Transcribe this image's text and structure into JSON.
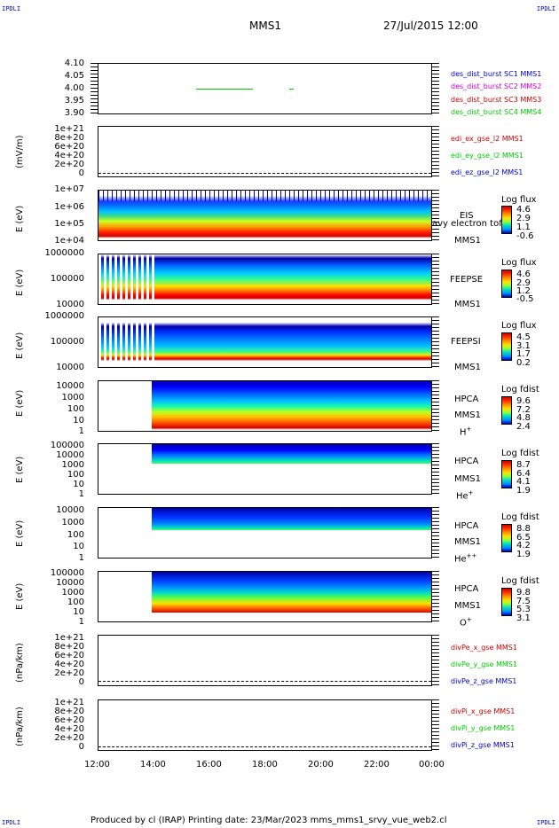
{
  "corners": {
    "tl": "IPDLI",
    "tr": "IPDLI",
    "bl": "IPDLI",
    "br": "IPDLI"
  },
  "header": {
    "spacecraft": "MMS1",
    "datetime": "27/Jul/2015 12:00"
  },
  "panels": {
    "p1": {
      "yticks": [
        "4.10",
        "4.05",
        "4.00",
        "3.95",
        "3.90"
      ],
      "legend": [
        {
          "label": "des_dist_burst SC1 MMS1",
          "color": "#0000cc"
        },
        {
          "label": "des_dist_burst SC2 MMS2",
          "color": "#cc00cc"
        },
        {
          "label": "des_dist_burst SC3 MMS3",
          "color": "#cc0000"
        },
        {
          "label": "des_dist_burst SC4 MMS4",
          "color": "#00cc00"
        }
      ]
    },
    "p2": {
      "ylabel": "(mV/m)",
      "yticks": [
        "1e+21",
        "8e+20",
        "6e+20",
        "4e+20",
        "2e+20",
        "0"
      ],
      "legend": [
        {
          "label": "edi_ex_gse_l2 MMS1",
          "color": "#cc0000"
        },
        {
          "label": "edi_ey_gse_l2 MMS1",
          "color": "#00cc00"
        },
        {
          "label": "edi_ez_gse_l2 MMS1",
          "color": "#0000cc"
        }
      ]
    },
    "p3": {
      "ylabel": "E (eV)",
      "yticks": [
        "1e+07",
        "1e+06",
        "1e+05",
        "1e+04"
      ],
      "instrument": "EIS",
      "species": "avy electron tof",
      "craft": "MMS1",
      "cb_title": "Log flux",
      "cb_values": [
        "4.6",
        "2.9",
        "1.1",
        "-0.6"
      ]
    },
    "p4": {
      "ylabel": "E (eV)",
      "yticks": [
        "1000000",
        "100000",
        "10000"
      ],
      "instrument": "FEEPSE",
      "craft": "MMS1",
      "cb_title": "Log flux",
      "cb_values": [
        "4.6",
        "2.9",
        "1.2",
        "-0.5"
      ]
    },
    "p5": {
      "ylabel": "E (eV)",
      "yticks": [
        "1000000",
        "100000",
        "10000"
      ],
      "instrument": "FEEPSI",
      "craft": "MMS1",
      "cb_title": "Log flux",
      "cb_values": [
        "4.5",
        "3.1",
        "1.7",
        "0.2"
      ]
    },
    "p6": {
      "ylabel": "E (eV)",
      "yticks": [
        "10000",
        "1000",
        "100",
        "10",
        "1"
      ],
      "instrument": "HPCA",
      "craft": "MMS1",
      "ion": "H",
      "ion_sup": "+",
      "cb_title": "Log fdist",
      "cb_values": [
        "9.6",
        "7.2",
        "4.8",
        "2.4"
      ]
    },
    "p7": {
      "ylabel": "E (eV)",
      "yticks": [
        "100000",
        "10000",
        "1000",
        "100",
        "10",
        "1"
      ],
      "instrument": "HPCA",
      "craft": "MMS1",
      "ion": "He",
      "ion_sup": "+",
      "cb_title": "Log fdist",
      "cb_values": [
        "8.7",
        "6.4",
        "4.1",
        "1.9"
      ]
    },
    "p8": {
      "ylabel": "E (eV)",
      "yticks": [
        "10000",
        "1000",
        "100",
        "10",
        "1"
      ],
      "instrument": "HPCA",
      "craft": "MMS1",
      "ion": "He",
      "ion_sup": "++",
      "cb_title": "Log fdist",
      "cb_values": [
        "8.8",
        "6.5",
        "4.2",
        "1.9"
      ]
    },
    "p9": {
      "ylabel": "E (eV)",
      "yticks": [
        "100000",
        "10000",
        "1000",
        "100",
        "10",
        "1"
      ],
      "instrument": "HPCA",
      "craft": "MMS1",
      "ion": "O",
      "ion_sup": "+",
      "cb_title": "Log fdist",
      "cb_values": [
        "9.8",
        "7.5",
        "5.3",
        "3.1"
      ]
    },
    "p10": {
      "ylabel": "(nPa/km)",
      "yticks": [
        "1e+21",
        "8e+20",
        "6e+20",
        "4e+20",
        "2e+20",
        "0"
      ],
      "legend": [
        {
          "label": "divPe_x_gse MMS1",
          "color": "#cc0000"
        },
        {
          "label": "divPe_y_gse MMS1",
          "color": "#00cc00"
        },
        {
          "label": "divPe_z_gse MMS1",
          "color": "#0000cc"
        }
      ]
    },
    "p11": {
      "ylabel": "(nPa/km)",
      "yticks": [
        "1e+21",
        "8e+20",
        "6e+20",
        "4e+20",
        "2e+20",
        "0"
      ],
      "legend": [
        {
          "label": "divPi_x_gse MMS1",
          "color": "#cc0000"
        },
        {
          "label": "divPi_y_gse MMS1",
          "color": "#00cc00"
        },
        {
          "label": "divPi_z_gse MMS1",
          "color": "#0000cc"
        }
      ]
    }
  },
  "xaxis": {
    "ticks": [
      "12:00",
      "14:00",
      "16:00",
      "18:00",
      "20:00",
      "22:00",
      "00:00"
    ]
  },
  "footer": "Produced by cl (IRAP)   Printing date: 23/Mar/2023   mms_mms1_srvy_vue_web2.cl"
}
